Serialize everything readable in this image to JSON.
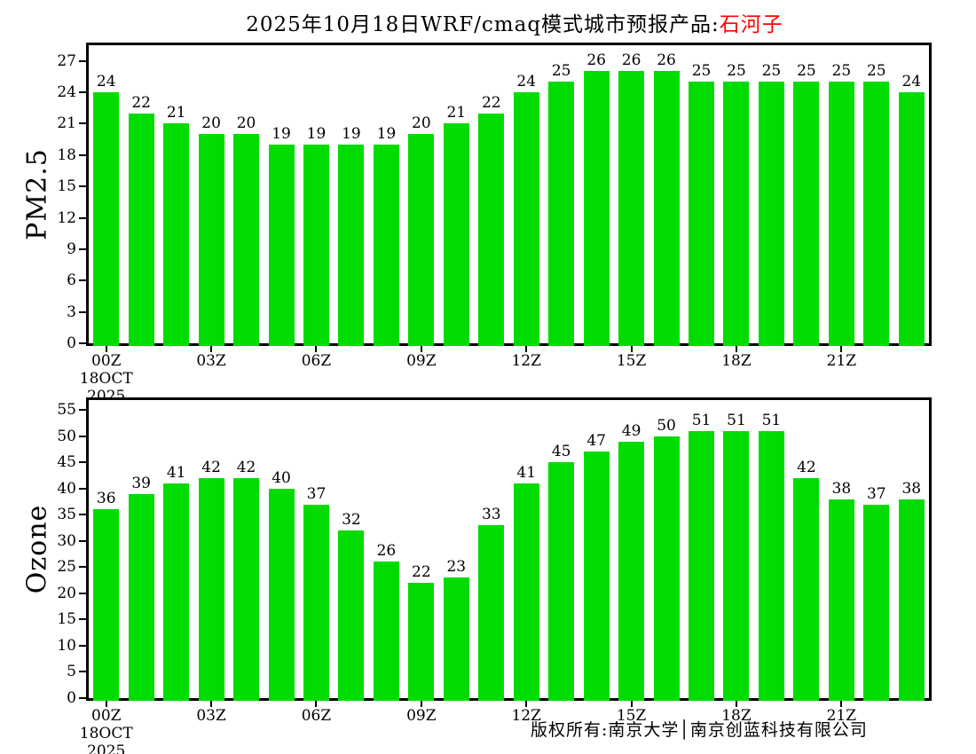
{
  "title": {
    "prefix": "2025年10月18日WRF/cmaq模式城市预报产品:",
    "city": "石河子"
  },
  "colors": {
    "bar": "#00dc00",
    "city": "#ff0000",
    "axis": "#000000",
    "background": "#ffffff"
  },
  "footer": {
    "copyright": "版权所有:南京大学│南京创蓝科技有限公司"
  },
  "x_axis": {
    "tick_labels": [
      "00Z",
      "03Z",
      "06Z",
      "09Z",
      "12Z",
      "15Z",
      "18Z",
      "21Z"
    ],
    "bars_per_tick": 3,
    "first_tick_sublabels": [
      "18OCT",
      "2025"
    ]
  },
  "chart_data": [
    {
      "type": "bar",
      "ylabel": "PM2.5",
      "values": [
        24,
        22,
        21,
        20,
        20,
        19,
        19,
        19,
        19,
        20,
        21,
        22,
        24,
        25,
        26,
        26,
        26,
        25,
        25,
        25,
        25,
        25,
        25,
        24
      ],
      "ylim": [
        0,
        27
      ],
      "ytick_step": 3,
      "frame_max": 28.5,
      "grid": false,
      "legend": "none",
      "value_labels": true
    },
    {
      "type": "bar",
      "ylabel": "Ozone",
      "values": [
        36,
        39,
        41,
        42,
        42,
        40,
        37,
        32,
        26,
        22,
        23,
        33,
        41,
        45,
        47,
        49,
        50,
        51,
        51,
        51,
        42,
        38,
        37,
        38
      ],
      "ylim": [
        0,
        55
      ],
      "ytick_step": 5,
      "frame_max": 56.9,
      "grid": false,
      "legend": "none",
      "value_labels": true
    }
  ]
}
